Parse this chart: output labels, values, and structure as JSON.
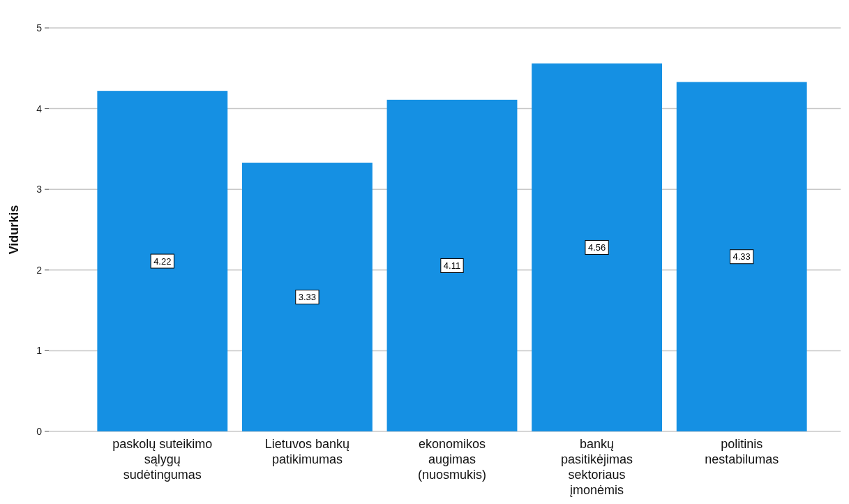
{
  "chart_data": {
    "type": "bar",
    "ylabel": "Vidurkis",
    "categories": [
      "paskolų suteikimo sąlygų sudėtingumas",
      "Lietuvos bankų patikimumas",
      "ekonomikos augimas (nuosmukis)",
      "bankų pasitikėjimas sektoriaus įmonėmis",
      "politinis nestabilumas"
    ],
    "values": [
      4.22,
      3.33,
      4.11,
      4.56,
      4.33
    ],
    "color": "#1590e3",
    "ylim": [
      0,
      5
    ],
    "yticks": [
      0,
      1,
      2,
      3,
      4,
      5
    ],
    "grid": "y",
    "data_labels": true
  }
}
